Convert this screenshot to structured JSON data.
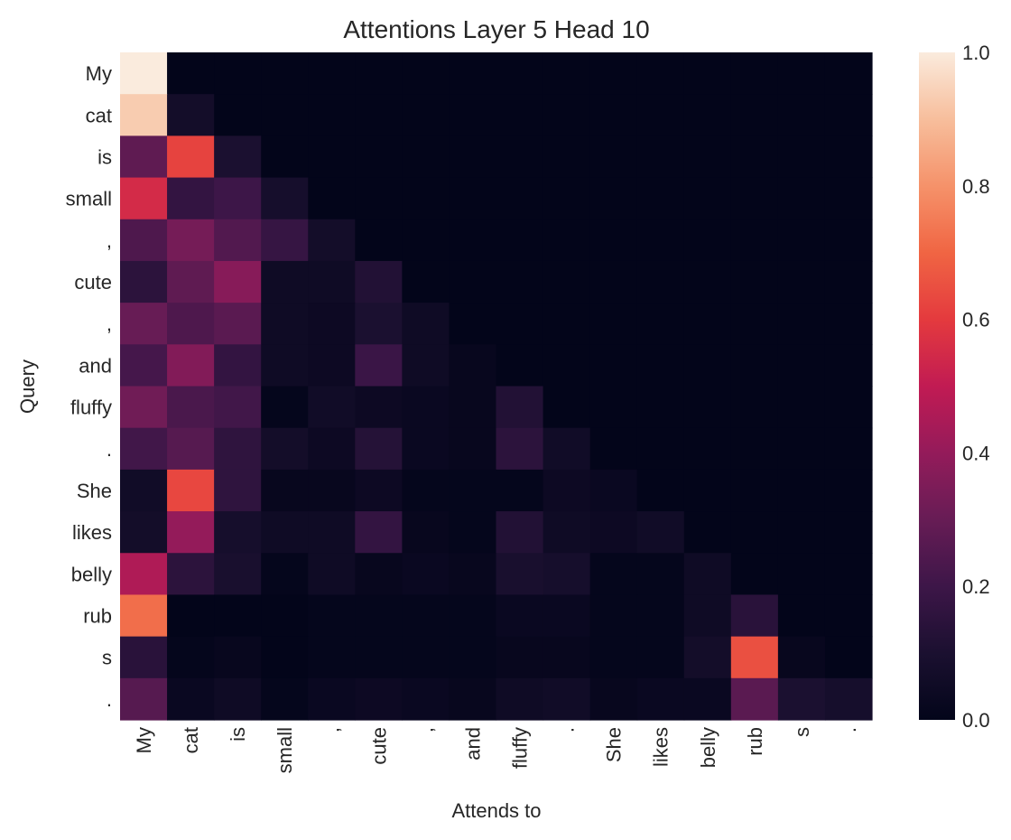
{
  "chart_data": {
    "type": "heatmap",
    "title": "Attentions Layer 5 Head 10",
    "xlabel": "Attends to",
    "ylabel": "Query",
    "x_tokens": [
      "My",
      "cat",
      "is",
      "small",
      ",",
      "cute",
      ",",
      "and",
      "fluffy",
      ".",
      "She",
      "likes",
      "belly",
      "rub",
      "s",
      "."
    ],
    "y_tokens": [
      "My",
      "cat",
      "is",
      "small",
      ",",
      "cute",
      ",",
      "and",
      "fluffy",
      ".",
      "She",
      "likes",
      "belly",
      "rub",
      "s",
      "."
    ],
    "values": [
      [
        1.0,
        0,
        0,
        0,
        0,
        0,
        0,
        0,
        0,
        0,
        0,
        0,
        0,
        0,
        0,
        0
      ],
      [
        0.93,
        0.07,
        0,
        0,
        0,
        0,
        0,
        0,
        0,
        0,
        0,
        0,
        0,
        0,
        0,
        0
      ],
      [
        0.28,
        0.62,
        0.1,
        0,
        0,
        0,
        0,
        0,
        0,
        0,
        0,
        0,
        0,
        0,
        0,
        0
      ],
      [
        0.55,
        0.17,
        0.2,
        0.08,
        0,
        0,
        0,
        0,
        0,
        0,
        0,
        0,
        0,
        0,
        0,
        0
      ],
      [
        0.24,
        0.33,
        0.25,
        0.18,
        0.07,
        0,
        0,
        0,
        0,
        0,
        0,
        0,
        0,
        0,
        0,
        0
      ],
      [
        0.15,
        0.28,
        0.37,
        0.05,
        0.05,
        0.12,
        0,
        0,
        0,
        0,
        0,
        0,
        0,
        0,
        0,
        0
      ],
      [
        0.3,
        0.24,
        0.27,
        0.05,
        0.04,
        0.1,
        0.05,
        0,
        0,
        0,
        0,
        0,
        0,
        0,
        0,
        0
      ],
      [
        0.22,
        0.36,
        0.17,
        0.05,
        0.04,
        0.19,
        0.05,
        0.02,
        0,
        0,
        0,
        0,
        0,
        0,
        0,
        0
      ],
      [
        0.32,
        0.23,
        0.21,
        0.01,
        0.06,
        0.04,
        0.03,
        0.02,
        0.12,
        0,
        0,
        0,
        0,
        0,
        0,
        0
      ],
      [
        0.21,
        0.26,
        0.16,
        0.07,
        0.04,
        0.13,
        0.03,
        0.02,
        0.15,
        0.06,
        0,
        0,
        0,
        0,
        0,
        0
      ],
      [
        0.06,
        0.63,
        0.16,
        0.02,
        0.02,
        0.04,
        0.01,
        0.01,
        0.01,
        0.04,
        0.03,
        0,
        0,
        0,
        0,
        0
      ],
      [
        0.07,
        0.4,
        0.08,
        0.05,
        0.05,
        0.17,
        0.02,
        0.01,
        0.12,
        0.05,
        0.04,
        0.06,
        0,
        0,
        0,
        0
      ],
      [
        0.46,
        0.15,
        0.09,
        0.01,
        0.05,
        0.02,
        0.03,
        0.02,
        0.09,
        0.08,
        0.01,
        0.01,
        0.05,
        0,
        0,
        0
      ],
      [
        0.72,
        0.0,
        0.0,
        0.0,
        0.01,
        0.01,
        0.01,
        0.01,
        0.03,
        0.03,
        0.01,
        0.01,
        0.05,
        0.14,
        0,
        0
      ],
      [
        0.14,
        0.01,
        0.02,
        0.0,
        0.01,
        0.01,
        0.01,
        0.01,
        0.02,
        0.02,
        0.01,
        0.01,
        0.07,
        0.65,
        0.02,
        0.0
      ],
      [
        0.26,
        0.03,
        0.05,
        0.01,
        0.03,
        0.04,
        0.03,
        0.02,
        0.05,
        0.06,
        0.02,
        0.03,
        0.03,
        0.27,
        0.1,
        0.08
      ]
    ],
    "colorbar": {
      "colormap": "rocket",
      "range": [
        0.0,
        1.0
      ],
      "ticks": [
        0.0,
        0.2,
        0.4,
        0.6,
        0.8,
        1.0
      ],
      "tick_labels": [
        "0.0",
        "0.2",
        "0.4",
        "0.6",
        "0.8",
        "1.0"
      ]
    },
    "grid": false
  }
}
